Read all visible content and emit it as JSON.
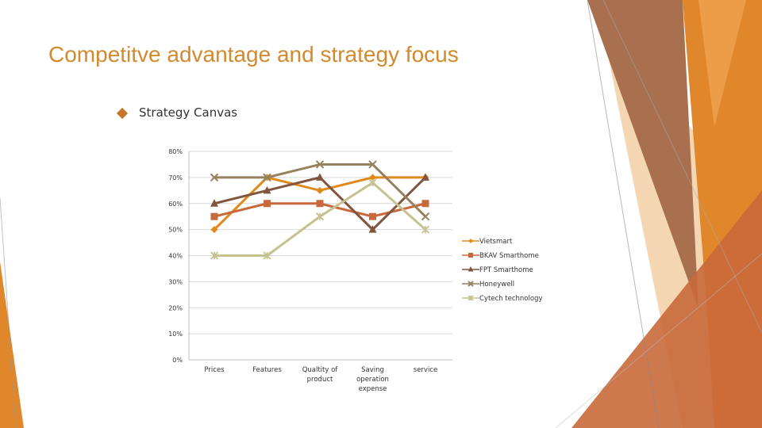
{
  "slide": {
    "title": "Competitve advantage and strategy focus",
    "bullet": "Strategy Canvas"
  },
  "colors": {
    "title": "#d28a2c",
    "bullet": "#c3762c",
    "deco_orange": "#e0872c",
    "deco_brown": "#a8704f",
    "deco_peach": "#f3cfa4",
    "deco_rust": "#c9693b"
  },
  "chart_data": {
    "type": "line",
    "categories": [
      "Prices",
      "Features",
      "Qualtity of product",
      "Saving operation expense",
      "service"
    ],
    "y_ticks": [
      "80%",
      "70%",
      "60%",
      "50%",
      "40%",
      "30%",
      "20%",
      "10%",
      "0%"
    ],
    "ylim": [
      0,
      80
    ],
    "grid": true,
    "legend_position": "right",
    "series": [
      {
        "name": "Vietsmart",
        "values": [
          50,
          70,
          65,
          70,
          70
        ],
        "color": "#e08a1e",
        "marker": "diamond"
      },
      {
        "name": "BKAV Smarthome",
        "values": [
          55,
          60,
          60,
          55,
          60
        ],
        "color": "#c8693b",
        "marker": "square"
      },
      {
        "name": "FPT Smarthome",
        "values": [
          60,
          65,
          70,
          50,
          70
        ],
        "color": "#80563e",
        "marker": "triangle"
      },
      {
        "name": "Honeywell",
        "values": [
          70,
          70,
          75,
          75,
          55
        ],
        "color": "#95825e",
        "marker": "x"
      },
      {
        "name": "Cytech technology",
        "values": [
          40,
          40,
          55,
          68,
          50
        ],
        "color": "#c5c28f",
        "marker": "star"
      }
    ]
  }
}
